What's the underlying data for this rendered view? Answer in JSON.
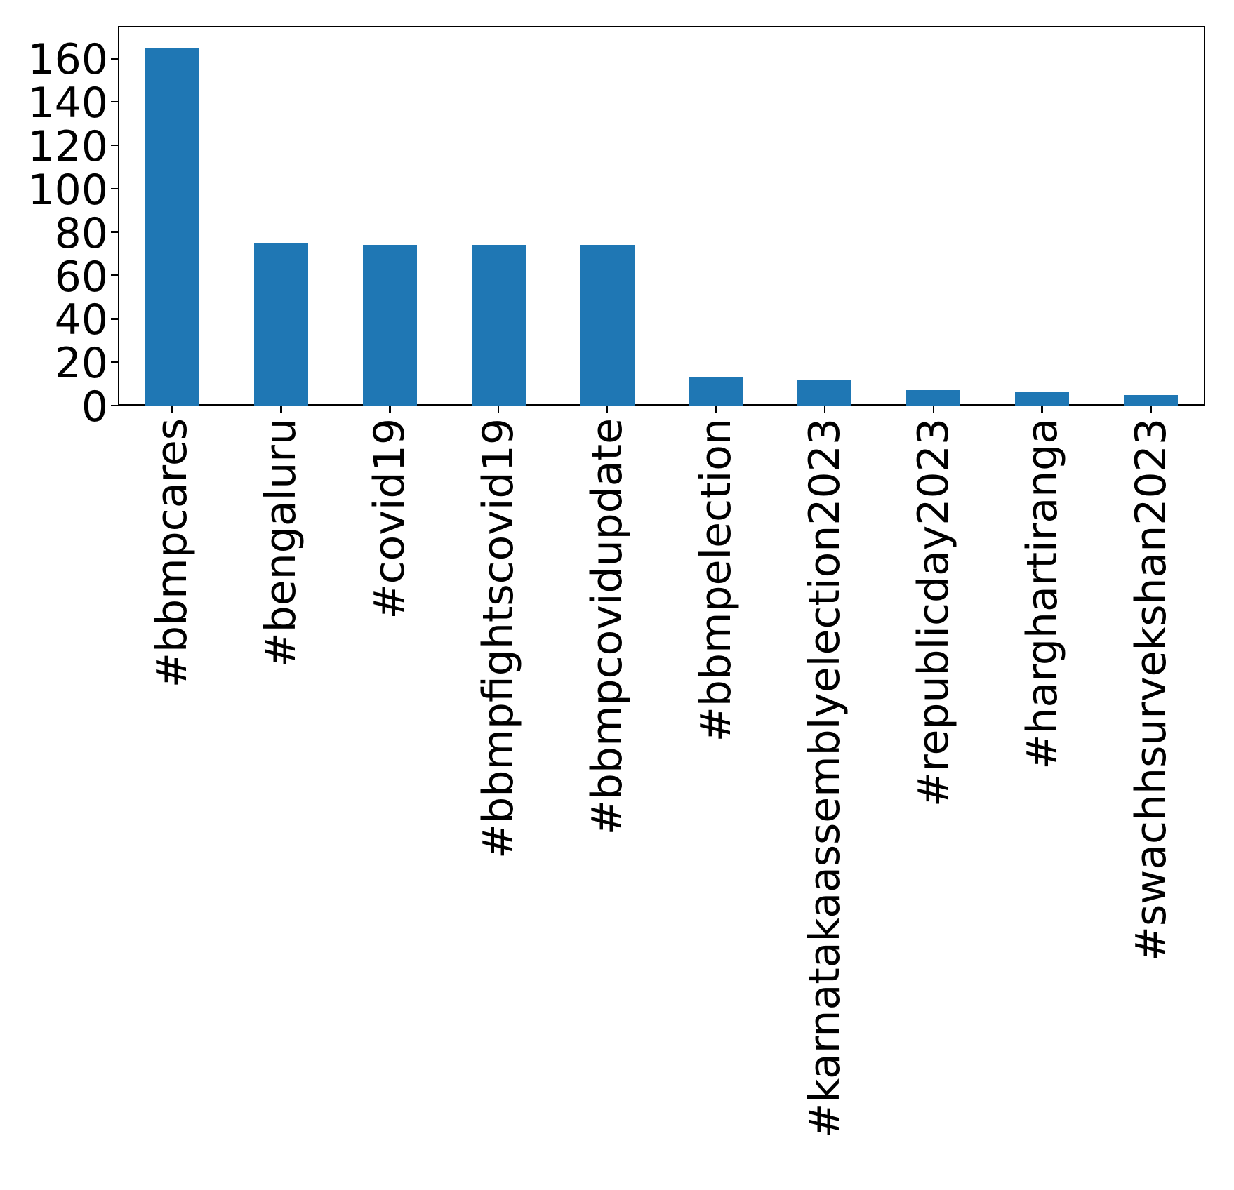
{
  "chart_data": {
    "type": "bar",
    "title": "",
    "xlabel": "",
    "ylabel": "",
    "categories": [
      "#bbmpcares",
      "#bengaluru",
      "#covid19",
      "#bbmpfightscovid19",
      "#bbmpcovidupdate",
      "#bbmpelection",
      "#karnatakaassemblyelection2023",
      "#republicday2023",
      "#harghartiranga",
      "#swachhsurvekshan2023"
    ],
    "values": [
      165,
      75,
      74,
      74,
      74,
      13,
      12,
      7,
      6,
      5
    ],
    "yticks": [
      0,
      20,
      40,
      60,
      80,
      100,
      120,
      140,
      160
    ],
    "ylim": [
      0,
      175
    ],
    "bar_color": "#1f77b4",
    "axis_color": "#000000",
    "text_color": "#000000",
    "grid": false,
    "legend_position": "none",
    "x_label_rotation_deg": 90
  }
}
